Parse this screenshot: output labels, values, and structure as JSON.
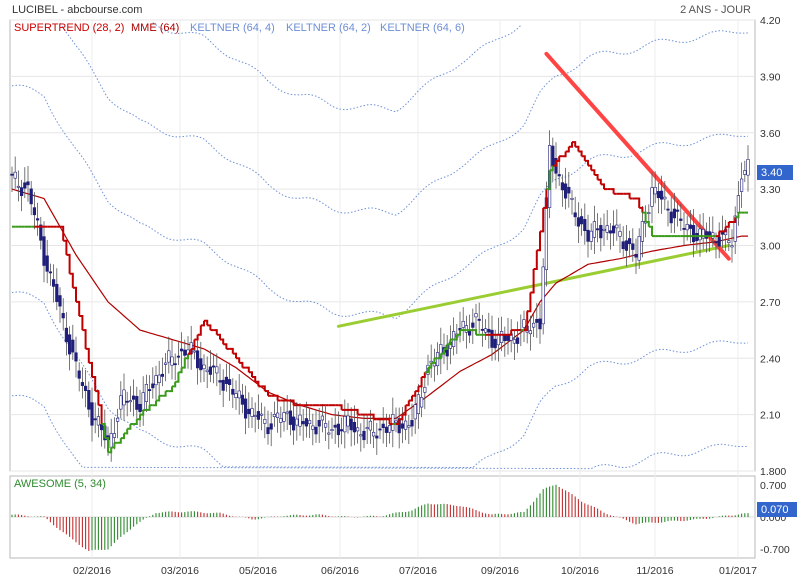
{
  "header": {
    "title": "LUCIBEL - abcbourse.com",
    "period": "2 ANS - JOUR",
    "legend": [
      {
        "label": "SUPERTREND (28, 2)",
        "color": "#cc0000"
      },
      {
        "label": "MME (64)",
        "color": "#aa0000"
      },
      {
        "label": "KELTNER (64, 4)",
        "color": "#6d8fd6"
      },
      {
        "label": "KELTNER (64, 2)",
        "color": "#6d8fd6"
      },
      {
        "label": "KELTNER (64, 6)",
        "color": "#6d8fd6"
      }
    ]
  },
  "price_badge": "3.40",
  "osc_badge": "0.070",
  "colors": {
    "candle": "#1f1f7a",
    "supertrend_up": "#3a9a1a",
    "supertrend_down": "#c00000",
    "ema": "#b00000",
    "keltner": "#6d8fd6",
    "trend_up": "#9acd32",
    "trend_down": "#ff4444",
    "osc_up": "#2e8b2e",
    "osc_down": "#c03030",
    "badge": "#3366cc"
  },
  "chart_data": {
    "type": "line",
    "y_ticks": [
      "4.20",
      "3.90",
      "3.60",
      "3.30",
      "3.00",
      "2.70",
      "2.40",
      "2.10",
      "1.800"
    ],
    "y_tick_values": [
      4.2,
      3.9,
      3.6,
      3.3,
      3.0,
      2.7,
      2.4,
      2.1,
      1.8
    ],
    "ylim": [
      1.8,
      4.2
    ],
    "x_ticks": [
      "02/2016",
      "03/2016",
      "05/2016",
      "06/2016",
      "07/2016",
      "09/2016",
      "10/2016",
      "11/2016",
      "01/2017"
    ],
    "price_series": [
      [
        0,
        3.35
      ],
      [
        5,
        3.3
      ],
      [
        10,
        2.95
      ],
      [
        15,
        2.65
      ],
      [
        20,
        2.35
      ],
      [
        25,
        2.1
      ],
      [
        30,
        1.95
      ],
      [
        35,
        2.2
      ],
      [
        40,
        2.15
      ],
      [
        45,
        2.3
      ],
      [
        50,
        2.4
      ],
      [
        55,
        2.45
      ],
      [
        60,
        2.35
      ],
      [
        65,
        2.3
      ],
      [
        70,
        2.2
      ],
      [
        75,
        2.1
      ],
      [
        80,
        2.05
      ],
      [
        85,
        2.1
      ],
      [
        90,
        2.05
      ],
      [
        95,
        2.05
      ],
      [
        100,
        2.02
      ],
      [
        105,
        2.05
      ],
      [
        110,
        2.0
      ],
      [
        115,
        2.02
      ],
      [
        120,
        2.05
      ],
      [
        125,
        2.05
      ],
      [
        130,
        2.35
      ],
      [
        135,
        2.45
      ],
      [
        140,
        2.55
      ],
      [
        145,
        2.6
      ],
      [
        150,
        2.5
      ],
      [
        155,
        2.5
      ],
      [
        160,
        2.55
      ],
      [
        165,
        2.6
      ],
      [
        168,
        3.5
      ],
      [
        170,
        3.4
      ],
      [
        175,
        3.2
      ],
      [
        180,
        3.05
      ],
      [
        185,
        3.1
      ],
      [
        190,
        3.05
      ],
      [
        195,
        2.95
      ],
      [
        200,
        3.3
      ],
      [
        205,
        3.2
      ],
      [
        210,
        3.1
      ],
      [
        215,
        3.05
      ],
      [
        220,
        3.05
      ],
      [
        225,
        3.02
      ],
      [
        228,
        3.4
      ]
    ],
    "series": [
      {
        "name": "MME (64)",
        "values": [
          [
            0,
            3.3
          ],
          [
            10,
            3.25
          ],
          [
            20,
            2.95
          ],
          [
            30,
            2.7
          ],
          [
            40,
            2.55
          ],
          [
            50,
            2.5
          ],
          [
            60,
            2.45
          ],
          [
            70,
            2.35
          ],
          [
            80,
            2.22
          ],
          [
            90,
            2.15
          ],
          [
            100,
            2.1
          ],
          [
            110,
            2.08
          ],
          [
            120,
            2.08
          ],
          [
            130,
            2.2
          ],
          [
            140,
            2.33
          ],
          [
            150,
            2.42
          ],
          [
            160,
            2.55
          ],
          [
            165,
            2.7
          ],
          [
            170,
            2.8
          ],
          [
            180,
            2.9
          ],
          [
            190,
            2.93
          ],
          [
            200,
            2.97
          ],
          [
            210,
            3.0
          ],
          [
            220,
            3.02
          ],
          [
            228,
            3.05
          ]
        ]
      },
      {
        "name": "SUPERTREND (28, 2)",
        "values": [
          [
            0,
            3.1
          ],
          [
            15,
            3.1
          ],
          [
            30,
            1.9
          ],
          [
            40,
            2.1
          ],
          [
            50,
            2.25
          ],
          [
            60,
            2.6
          ],
          [
            70,
            2.4
          ],
          [
            80,
            2.2
          ],
          [
            90,
            2.15
          ],
          [
            100,
            2.15
          ],
          [
            110,
            2.1
          ],
          [
            120,
            2.05
          ],
          [
            130,
            2.35
          ],
          [
            140,
            2.55
          ],
          [
            150,
            2.52
          ],
          [
            160,
            2.55
          ],
          [
            168,
            3.4
          ],
          [
            175,
            3.55
          ],
          [
            185,
            3.3
          ],
          [
            195,
            3.25
          ],
          [
            200,
            3.05
          ],
          [
            210,
            3.05
          ],
          [
            220,
            3.05
          ],
          [
            228,
            3.18
          ]
        ]
      }
    ],
    "keltner_offsets": [
      0.55,
      1.1,
      1.65
    ],
    "trend_lines": [
      {
        "from": [
          102,
          2.57
        ],
        "to": [
          224,
          3.0
        ]
      },
      {
        "from": [
          167,
          4.02
        ],
        "to": [
          224,
          2.93
        ]
      }
    ],
    "oscillator": {
      "title": "AWESOME (5, 34)",
      "y_ticks": [
        "0.700",
        "0.000",
        "-0.700"
      ],
      "y_tick_values": [
        0.7,
        0.0,
        -0.7
      ],
      "ylim": [
        -0.9,
        0.9
      ],
      "values": [
        [
          0,
          0.05
        ],
        [
          10,
          0.0
        ],
        [
          18,
          -0.45
        ],
        [
          24,
          -0.75
        ],
        [
          30,
          -0.7
        ],
        [
          38,
          -0.2
        ],
        [
          45,
          0.1
        ],
        [
          55,
          0.12
        ],
        [
          65,
          0.08
        ],
        [
          75,
          -0.05
        ],
        [
          85,
          0.03
        ],
        [
          95,
          0.05
        ],
        [
          105,
          0.0
        ],
        [
          115,
          0.02
        ],
        [
          125,
          0.15
        ],
        [
          130,
          0.3
        ],
        [
          140,
          0.25
        ],
        [
          150,
          0.05
        ],
        [
          160,
          0.1
        ],
        [
          166,
          0.6
        ],
        [
          170,
          0.72
        ],
        [
          178,
          0.35
        ],
        [
          185,
          0.1
        ],
        [
          195,
          -0.15
        ],
        [
          205,
          -0.1
        ],
        [
          215,
          -0.05
        ],
        [
          228,
          0.07
        ]
      ]
    }
  }
}
